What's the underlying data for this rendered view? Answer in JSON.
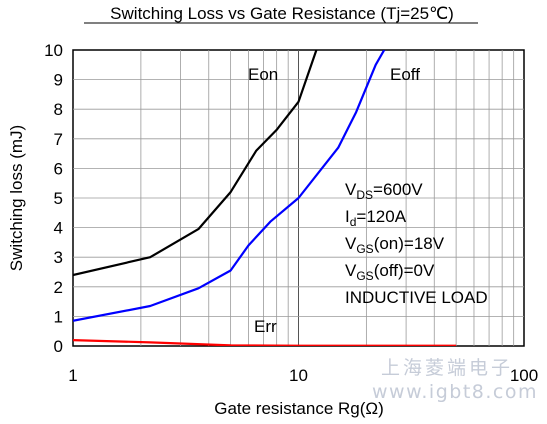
{
  "chart_data": {
    "type": "line",
    "title": "Switching Loss vs Gate Resistance (Tj=25℃)",
    "xlabel": "Gate resistance Rg(Ω)",
    "ylabel": "Switching loss (mJ)",
    "xscale": "log",
    "xlim": [
      1,
      100
    ],
    "ylim": [
      0,
      10
    ],
    "x_ticks": [
      "1",
      "10",
      "100"
    ],
    "y_ticks": [
      "0",
      "1",
      "2",
      "3",
      "4",
      "5",
      "6",
      "7",
      "8",
      "9",
      "10"
    ],
    "grid": true,
    "series": [
      {
        "name": "Eon",
        "color": "#000000",
        "points": [
          [
            1,
            2.4
          ],
          [
            2.2,
            3.0
          ],
          [
            3.6,
            3.95
          ],
          [
            5.0,
            5.2
          ],
          [
            6.5,
            6.6
          ],
          [
            8.0,
            7.3
          ],
          [
            10.0,
            8.25
          ],
          [
            12.0,
            10.0
          ]
        ]
      },
      {
        "name": "Eoff",
        "color": "#0000ff",
        "points": [
          [
            1,
            0.85
          ],
          [
            2.2,
            1.35
          ],
          [
            3.6,
            1.95
          ],
          [
            5.0,
            2.55
          ],
          [
            6.0,
            3.4
          ],
          [
            7.5,
            4.2
          ],
          [
            10.0,
            5.0
          ],
          [
            15.0,
            6.7
          ],
          [
            18.0,
            7.9
          ],
          [
            22.0,
            9.5
          ],
          [
            24.0,
            10.0
          ]
        ]
      },
      {
        "name": "Err",
        "color": "#ff0000",
        "points": [
          [
            1,
            0.2
          ],
          [
            2.2,
            0.12
          ],
          [
            5.0,
            0.02
          ],
          [
            10.0,
            0.01
          ],
          [
            50.0,
            0.01
          ]
        ]
      }
    ],
    "conditions": {
      "vds": {
        "main": "V",
        "sub": "DS",
        "rest": "=600V"
      },
      "id": {
        "main": "I",
        "sub": "d",
        "rest": "=120A"
      },
      "vgs_on": {
        "main": "V",
        "sub": "GS",
        "rest": "(on)=18V"
      },
      "vgs_off": {
        "main": "V",
        "sub": "GS",
        "rest": "(off)=0V"
      },
      "mode": "INDUCTIVE LOAD"
    }
  },
  "watermark": {
    "line1": "上海菱端电子",
    "line2": "www.igbt8.com"
  }
}
